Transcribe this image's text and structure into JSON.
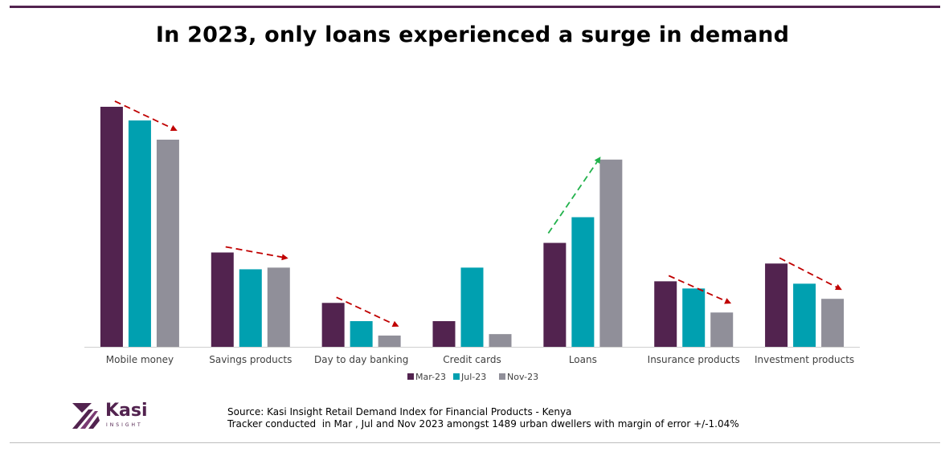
{
  "title": "In 2023, only loans experienced a surge in demand",
  "colors": {
    "series": [
      "#52234f",
      "#00a0b0",
      "#908f99"
    ],
    "trend_down": "#c00000",
    "trend_up": "#22b24c",
    "rule_top": "#52234f"
  },
  "chart_data": {
    "type": "bar",
    "title": "In 2023, only loans experienced a surge in demand",
    "categories": [
      "Mobile money",
      "Savings products",
      "Day to day banking",
      "Credit cards",
      "Loans",
      "Insurance products",
      "Investment products"
    ],
    "series": [
      {
        "name": "Mar-23",
        "values": [
          100,
          39.3,
          18.3,
          10.7,
          43.3,
          27.3,
          34.7
        ]
      },
      {
        "name": "Jul-23",
        "values": [
          94.3,
          32.3,
          10.7,
          33,
          54,
          24.3,
          26.3
        ]
      },
      {
        "name": "Nov-23",
        "values": [
          86.3,
          33,
          4.7,
          5.3,
          78,
          14.3,
          20
        ]
      }
    ],
    "trends": [
      "down",
      "down",
      "down",
      "none",
      "up",
      "down",
      "down"
    ],
    "xlabel": "",
    "ylabel": "",
    "ylim": [
      0,
      100
    ],
    "grid": false,
    "legend": "bottom-center"
  },
  "logo": {
    "name": "Kasi",
    "tagline": "INSIGHT"
  },
  "source": {
    "line1": "Source: Kasi Insight Retail Demand Index for Financial Products - Kenya",
    "line2": "Tracker conducted  in Mar , Jul and Nov 2023 amongst 1489 urban dwellers with margin of error +/-1.04%"
  }
}
